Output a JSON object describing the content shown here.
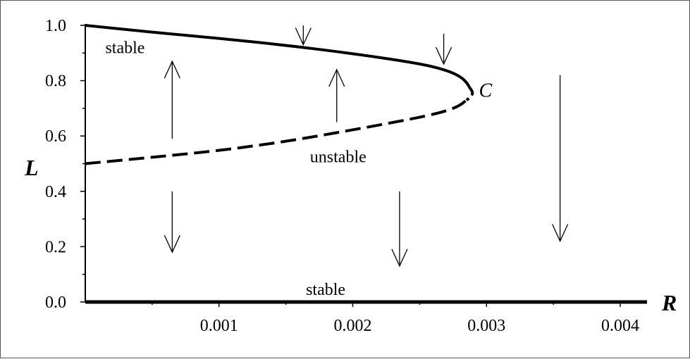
{
  "chart_data": {
    "type": "line",
    "xlabel": "R",
    "ylabel": "L",
    "xlim": [
      0,
      0.0042
    ],
    "ylim": [
      0,
      1.0
    ],
    "x_ticks": [
      "0.001",
      "0.002",
      "0.003",
      "0.004"
    ],
    "x_tick_values": [
      0.001,
      0.002,
      0.003,
      0.004
    ],
    "y_ticks": [
      "0.0",
      "0.2",
      "0.4",
      "0.6",
      "0.8",
      "1.0"
    ],
    "y_tick_values": [
      0.0,
      0.2,
      0.4,
      0.6,
      0.8,
      1.0
    ],
    "grid": false,
    "legend": "none",
    "series": [
      {
        "label": "stable",
        "style": "solid",
        "x": [
          0,
          0.0005,
          0.001,
          0.0015,
          0.002,
          0.0025,
          0.0027,
          0.0028,
          0.00285,
          0.00288
        ],
        "y": [
          1.0,
          0.975,
          0.953,
          0.928,
          0.898,
          0.862,
          0.838,
          0.816,
          0.795,
          0.77
        ]
      },
      {
        "label": "unstable",
        "style": "dashed",
        "x": [
          0,
          0.0005,
          0.001,
          0.0015,
          0.002,
          0.0025,
          0.0027,
          0.0028,
          0.00285
        ],
        "y": [
          0.5,
          0.523,
          0.547,
          0.58,
          0.622,
          0.667,
          0.69,
          0.71,
          0.73
        ]
      },
      {
        "label": "stable",
        "style": "solid",
        "x": [
          0,
          0.0042
        ],
        "y": [
          0.0,
          0.0
        ]
      }
    ],
    "annotations": {
      "branch_labels": [
        {
          "text": "stable",
          "x": 0.00015,
          "y": 0.9
        },
        {
          "text": "unstable",
          "x": 0.00168,
          "y": 0.505
        },
        {
          "text": "stable",
          "x": 0.00165,
          "y": 0.025
        }
      ],
      "point": {
        "text": "C",
        "x": 0.00288,
        "y": 0.765
      },
      "arrows": [
        {
          "x": 0.00163,
          "y_from": 1.0,
          "y_to": 0.93,
          "direction": "down"
        },
        {
          "x": 0.00268,
          "y_from": 0.97,
          "y_to": 0.86,
          "direction": "down"
        },
        {
          "x": 0.00065,
          "y_from": 0.59,
          "y_to": 0.87,
          "direction": "up"
        },
        {
          "x": 0.00188,
          "y_from": 0.65,
          "y_to": 0.84,
          "direction": "up"
        },
        {
          "x": 0.00065,
          "y_from": 0.4,
          "y_to": 0.18,
          "direction": "down"
        },
        {
          "x": 0.00235,
          "y_from": 0.4,
          "y_to": 0.13,
          "direction": "down"
        },
        {
          "x": 0.00355,
          "y_from": 0.82,
          "y_to": 0.22,
          "direction": "down"
        }
      ]
    }
  }
}
